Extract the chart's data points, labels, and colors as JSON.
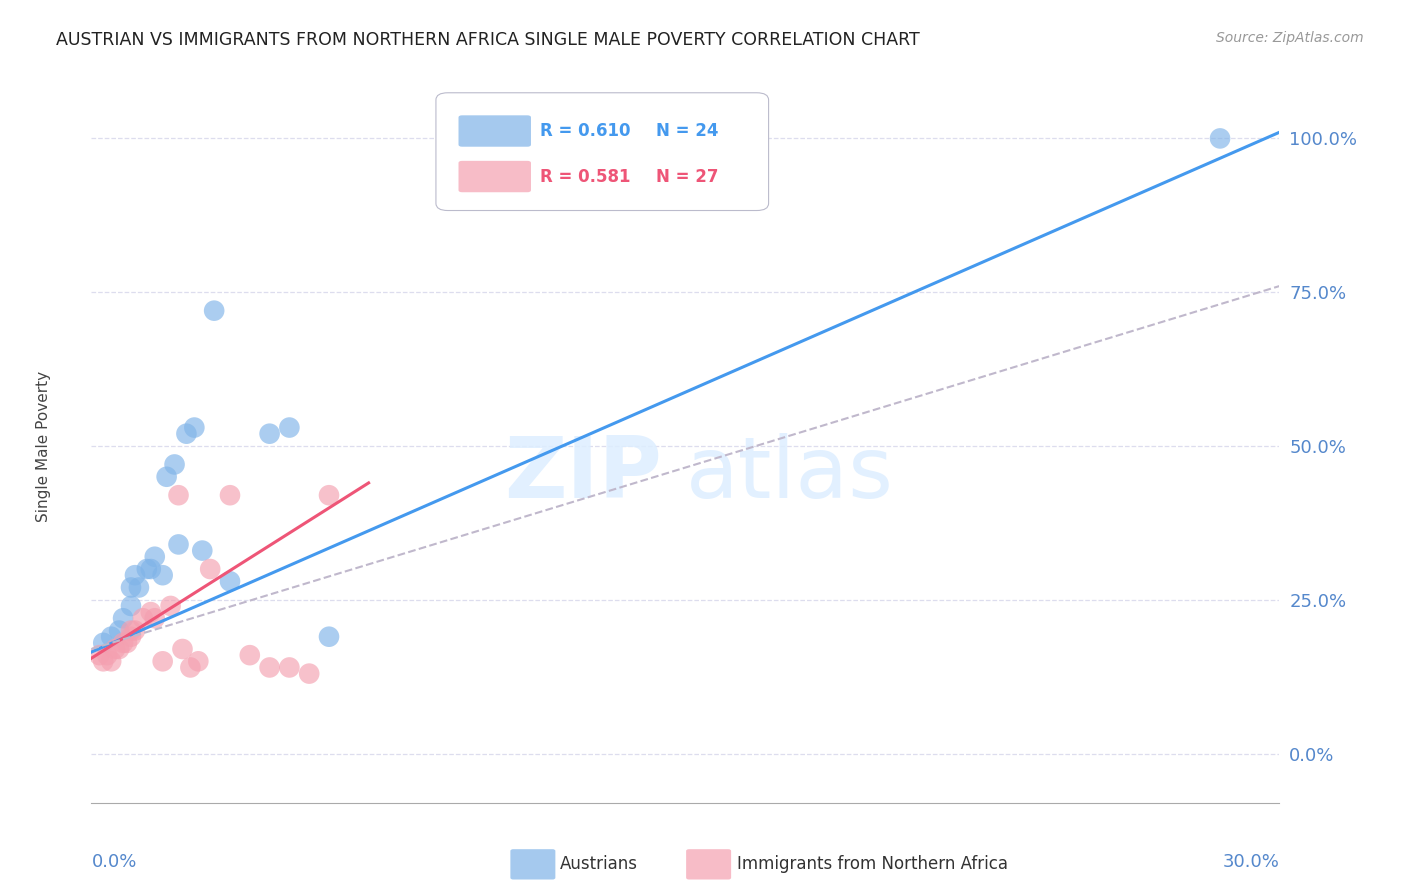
{
  "title": "AUSTRIAN VS IMMIGRANTS FROM NORTHERN AFRICA SINGLE MALE POVERTY CORRELATION CHART",
  "source": "Source: ZipAtlas.com",
  "ylabel": "Single Male Poverty",
  "legend_R1": "R = 0.610",
  "legend_N1": "N = 24",
  "legend_R2": "R = 0.581",
  "legend_N2": "N = 27",
  "legend_label1": "Austrians",
  "legend_label2": "Immigrants from Northern Africa",
  "austrian_color": "#7fb3e8",
  "immigrant_color": "#f4a0b0",
  "trendline_austrian_color": "#4499ee",
  "trendline_immigrant_color": "#ee5577",
  "trendline_dashed_color": "#c0b8cc",
  "background_color": "#ffffff",
  "grid_color": "#ddddee",
  "title_color": "#222222",
  "right_axis_color": "#5588cc",
  "bottom_axis_color": "#5588cc",
  "xlim_min": 0.0,
  "xlim_max": 30.0,
  "ylim_min": -8.0,
  "ylim_max": 108.0,
  "x_tick_positions": [
    0,
    5,
    10,
    15,
    20,
    25,
    30
  ],
  "y_grid_values": [
    0,
    25,
    50,
    75,
    100
  ],
  "y_right_labels": [
    "0.0%",
    "25.0%",
    "50.0%",
    "75.0%",
    "100.0%"
  ],
  "y_right_positions": [
    0,
    25,
    50,
    75,
    100
  ],
  "austrian_points_x": [
    0.3,
    0.5,
    0.7,
    0.8,
    1.0,
    1.0,
    1.1,
    1.2,
    1.4,
    1.5,
    1.6,
    1.8,
    1.9,
    2.1,
    2.2,
    2.4,
    2.6,
    2.8,
    3.1,
    3.5,
    4.5,
    5.0,
    6.0,
    28.5
  ],
  "austrian_points_y": [
    18,
    19,
    20,
    22,
    24,
    27,
    29,
    27,
    30,
    30,
    32,
    29,
    45,
    47,
    34,
    52,
    53,
    33,
    72,
    28,
    52,
    53,
    19,
    100
  ],
  "immigrant_points_x": [
    0.2,
    0.3,
    0.4,
    0.5,
    0.6,
    0.7,
    0.8,
    0.9,
    1.0,
    1.0,
    1.1,
    1.3,
    1.5,
    1.6,
    1.8,
    2.0,
    2.2,
    2.3,
    2.5,
    2.7,
    3.0,
    3.5,
    4.0,
    4.5,
    5.0,
    5.5,
    6.0
  ],
  "immigrant_points_y": [
    16,
    15,
    16,
    15,
    17,
    17,
    18,
    18,
    19,
    20,
    20,
    22,
    23,
    22,
    15,
    24,
    42,
    17,
    14,
    15,
    30,
    42,
    16,
    14,
    14,
    13,
    42
  ],
  "austrian_trend_x": [
    0.0,
    30.0
  ],
  "austrian_trend_y": [
    16.5,
    101.0
  ],
  "immigrant_trend_x": [
    0.0,
    7.0
  ],
  "immigrant_trend_y": [
    15.5,
    44.0
  ],
  "dashed_trend_x": [
    0.0,
    30.0
  ],
  "dashed_trend_y": [
    17.0,
    76.0
  ]
}
